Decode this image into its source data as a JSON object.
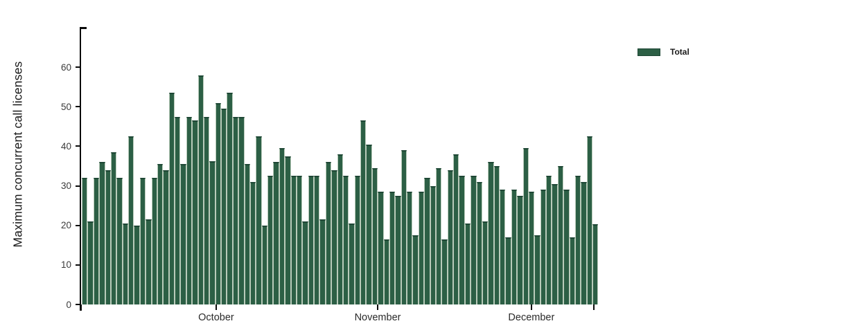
{
  "chart_data": {
    "type": "bar",
    "title": "",
    "ylabel": "Maximum concurrent call licenses",
    "xlabel": "",
    "ylim": [
      0,
      70
    ],
    "yticks": [
      0,
      10,
      20,
      30,
      40,
      50,
      60
    ],
    "grid": false,
    "legend_position": "top-right",
    "xticks": [
      {
        "label": "October",
        "pos": 0.261
      },
      {
        "label": "November",
        "pos": 0.573
      },
      {
        "label": "December",
        "pos": 0.87
      }
    ],
    "axis_end_tick_positions": [
      0,
      0.99
    ],
    "series": [
      {
        "name": "Total",
        "color": "#2c5f45",
        "edge_color": "#1d4634",
        "values": [
          32,
          21,
          32,
          36,
          34,
          38.5,
          32,
          20.5,
          42.5,
          20,
          32,
          21.5,
          32,
          35.5,
          34,
          53.5,
          47.5,
          35.5,
          47.5,
          46.5,
          58,
          47.5,
          36.3,
          51,
          49.5,
          53.5,
          47.5,
          47.5,
          35.5,
          31,
          42.5,
          20,
          32.5,
          36,
          39.5,
          37.5,
          32.5,
          32.5,
          21,
          32.5,
          32.5,
          21.5,
          36,
          34,
          38,
          32.5,
          20.5,
          32.5,
          46.5,
          40.5,
          34.5,
          28.5,
          16.5,
          28.5,
          27.5,
          39,
          28.5,
          17.5,
          28.5,
          32,
          30,
          34.5,
          16.5,
          34,
          38,
          32.5,
          20.5,
          32.5,
          31,
          21,
          36,
          35,
          29,
          17,
          29,
          27.5,
          39.5,
          28.5,
          17.5,
          29,
          32.5,
          30.5,
          35,
          29,
          17,
          32.5,
          31,
          42.5,
          20.3
        ]
      }
    ]
  },
  "legend": {
    "total_label": "Total"
  },
  "colors": {
    "bar_fill": "#2c5f45",
    "bar_edge": "#1d4634",
    "bar_separator": "#b9cbba",
    "axis": "#0a0a0a",
    "tick_label": "#3a3a3a",
    "background": "#ffffff"
  }
}
